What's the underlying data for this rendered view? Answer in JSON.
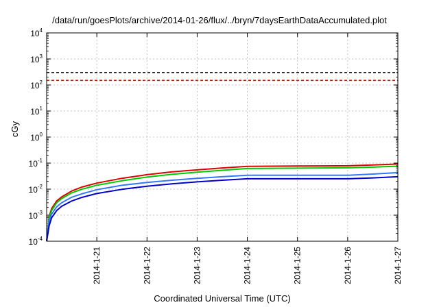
{
  "chart_data": {
    "type": "line",
    "title": "/data/run/goesPlots/archive/2014-01-26/flux/../bryn/7daysEarthDataAccumulated.plot",
    "xlabel": "Coordinated Universal Time (UTC)",
    "ylabel": "cGy",
    "y_scale": "log",
    "ylim": [
      0.0001,
      10000
    ],
    "xlim": [
      0,
      7
    ],
    "y_ticks": [
      {
        "value": 0.0001,
        "base": "10",
        "exp": "-4"
      },
      {
        "value": 0.001,
        "base": "10",
        "exp": "-3"
      },
      {
        "value": 0.01,
        "base": "10",
        "exp": "-2"
      },
      {
        "value": 0.1,
        "base": "10",
        "exp": "-1"
      },
      {
        "value": 1,
        "base": "10",
        "exp": "0"
      },
      {
        "value": 10,
        "base": "10",
        "exp": "1"
      },
      {
        "value": 100,
        "base": "10",
        "exp": "2"
      },
      {
        "value": 1000,
        "base": "10",
        "exp": "3"
      },
      {
        "value": 10000,
        "base": "10",
        "exp": "4"
      }
    ],
    "x_ticks": [
      {
        "value": 1,
        "label": "2014-1-21"
      },
      {
        "value": 2,
        "label": "2014-1-22"
      },
      {
        "value": 3,
        "label": "2014-1-23"
      },
      {
        "value": 4,
        "label": "2014-1-24"
      },
      {
        "value": 5,
        "label": "2014-1-25"
      },
      {
        "value": 6,
        "label": "2014-1-26"
      },
      {
        "value": 7,
        "label": "2014-1-27"
      }
    ],
    "grid": true,
    "thresholds": [
      {
        "value": 300,
        "color": "#000000",
        "style": "dashed"
      },
      {
        "value": 150,
        "color": "#ff0000",
        "style": "dashed"
      }
    ],
    "series": [
      {
        "color": "#dd0000",
        "x": [
          0,
          0.05,
          0.1,
          0.2,
          0.3,
          0.5,
          0.7,
          1,
          1.5,
          2,
          2.5,
          3,
          3.5,
          4,
          4.5,
          5,
          5.5,
          6,
          6.5,
          7
        ],
        "y": [
          0.0001,
          0.0009,
          0.0018,
          0.0035,
          0.005,
          0.0085,
          0.012,
          0.017,
          0.026,
          0.036,
          0.046,
          0.055,
          0.065,
          0.075,
          0.076,
          0.077,
          0.078,
          0.079,
          0.085,
          0.092
        ]
      },
      {
        "color": "#00cc00",
        "x": [
          0,
          0.05,
          0.1,
          0.2,
          0.3,
          0.5,
          0.7,
          1,
          1.5,
          2,
          2.5,
          3,
          3.5,
          4,
          4.5,
          5,
          5.5,
          6,
          6.5,
          7
        ],
        "y": [
          0.0001,
          0.0008,
          0.0015,
          0.003,
          0.0043,
          0.0072,
          0.0099,
          0.014,
          0.021,
          0.029,
          0.037,
          0.045,
          0.053,
          0.062,
          0.063,
          0.064,
          0.065,
          0.066,
          0.07,
          0.076
        ]
      },
      {
        "color": "#3377ff",
        "x": [
          0,
          0.05,
          0.1,
          0.2,
          0.3,
          0.5,
          0.7,
          1,
          1.5,
          2,
          2.5,
          3,
          3.5,
          4,
          4.5,
          5,
          5.5,
          6,
          6.5,
          7
        ],
        "y": [
          0.0001,
          0.0006,
          0.0011,
          0.0021,
          0.003,
          0.0049,
          0.0066,
          0.0095,
          0.014,
          0.018,
          0.022,
          0.026,
          0.03,
          0.034,
          0.034,
          0.034,
          0.034,
          0.034,
          0.038,
          0.043
        ]
      },
      {
        "color": "#0000cc",
        "x": [
          0,
          0.05,
          0.1,
          0.2,
          0.3,
          0.5,
          0.7,
          1,
          1.5,
          2,
          2.5,
          3,
          3.5,
          4,
          4.5,
          5,
          5.5,
          6,
          6.5,
          7
        ],
        "y": [
          0.0001,
          0.0004,
          0.0008,
          0.0015,
          0.0022,
          0.0035,
          0.0048,
          0.0068,
          0.0098,
          0.013,
          0.016,
          0.019,
          0.022,
          0.025,
          0.025,
          0.025,
          0.025,
          0.025,
          0.027,
          0.03
        ]
      }
    ]
  }
}
